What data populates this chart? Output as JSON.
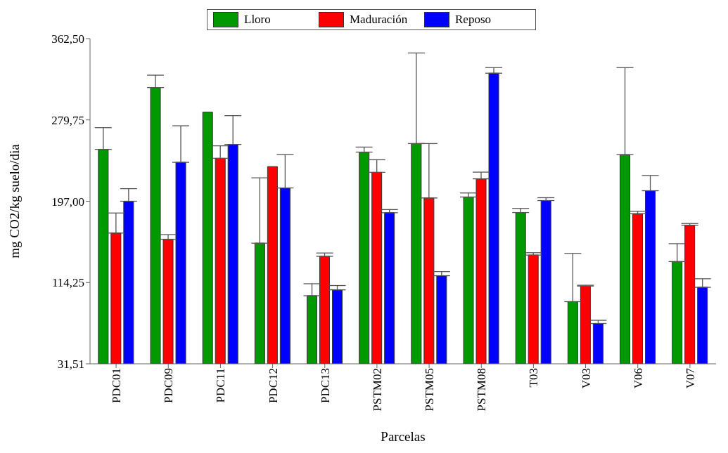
{
  "chart_data": {
    "type": "bar",
    "xlabel": "Parcelas",
    "ylabel": "mg CO2/kg suelo/dia",
    "categories": [
      "PDC01",
      "PDC09",
      "PDC11",
      "PDC12",
      "PDC13",
      "PSTM02",
      "PSTM05",
      "PSTM08",
      "T03",
      "V03",
      "V06",
      "V07"
    ],
    "series": [
      {
        "name": "Lloro",
        "color": "#009900",
        "values": [
          249.8,
          312.7,
          287.7,
          154.3,
          100.8,
          247.0,
          255.7,
          201.3,
          185.5,
          94.8,
          244.4,
          135.6
        ],
        "errors": [
          [
            249.8,
            271.9
          ],
          [
            312.7,
            325.3
          ],
          null,
          [
            154.3,
            220.8
          ],
          [
            100.8,
            113.0
          ],
          [
            247.0,
            252.1
          ],
          [
            255.7,
            347.9
          ],
          [
            201.3,
            205.4
          ],
          [
            185.5,
            189.7
          ],
          [
            94.8,
            143.9
          ],
          [
            244.4,
            333.0
          ],
          [
            135.6,
            153.8
          ]
        ]
      },
      {
        "name": "Maduración",
        "color": "#ff0000",
        "values": [
          164.6,
          158.2,
          240.7,
          232.3,
          140.9,
          226.4,
          200.3,
          219.8,
          142.2,
          110.6,
          184.3,
          172.6
        ],
        "errors": [
          [
            164.6,
            185.0
          ],
          [
            158.2,
            163.0
          ],
          [
            240.7,
            253.4
          ],
          null,
          [
            140.9,
            144.3
          ],
          [
            226.4,
            239.2
          ],
          [
            200.3,
            255.7
          ],
          [
            219.8,
            226.6
          ],
          [
            142.2,
            144.6
          ],
          [
            110.6,
            111.5
          ],
          [
            184.3,
            186.7
          ],
          [
            172.6,
            174.3
          ]
        ]
      },
      {
        "name": "Reposo",
        "color": "#0000ff",
        "values": [
          197.0,
          236.6,
          254.8,
          210.5,
          106.8,
          185.3,
          121.2,
          327.3,
          197.7,
          72.6,
          207.7,
          109.4
        ],
        "errors": [
          [
            197.0,
            209.8
          ],
          [
            236.6,
            273.8
          ],
          [
            254.8,
            284.1
          ],
          [
            210.5,
            244.5
          ],
          [
            106.8,
            111.2
          ],
          [
            185.3,
            188.5
          ],
          [
            121.2,
            125.4
          ],
          [
            327.3,
            333.0
          ],
          [
            197.7,
            200.6
          ],
          [
            72.6,
            75.8
          ],
          [
            207.7,
            223.2
          ],
          [
            109.4,
            118.1
          ]
        ]
      }
    ],
    "ylim": [
      31.51,
      362.5
    ],
    "yticks": [
      {
        "value": 31.51,
        "label": "31,51"
      },
      {
        "value": 114.25,
        "label": "114,25"
      },
      {
        "value": 197.0,
        "label": "197,00"
      },
      {
        "value": 279.75,
        "label": "279,75"
      },
      {
        "value": 362.5,
        "label": "362,50"
      }
    ],
    "grid": false,
    "legend": "top"
  }
}
